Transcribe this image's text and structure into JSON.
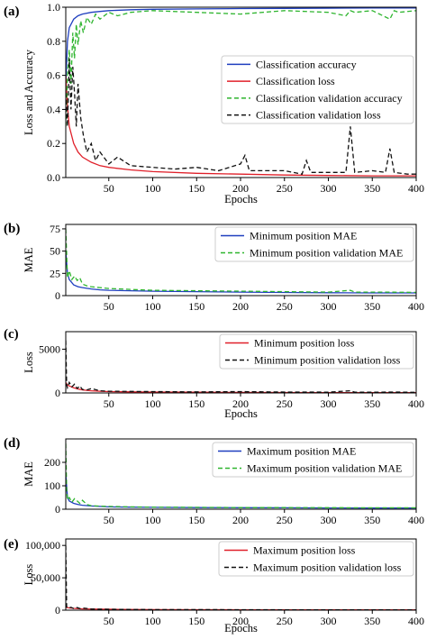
{
  "chart_data": [
    {
      "panel_label": "(a)",
      "type": "line",
      "xlabel": "Epochs",
      "ylabel": "Loss and Accuracy",
      "xlim": [
        1,
        400
      ],
      "ylim": [
        0,
        1.0
      ],
      "xticks": [
        50,
        100,
        150,
        200,
        250,
        300,
        350,
        400
      ],
      "yticks": [
        0.0,
        0.2,
        0.4,
        0.6,
        0.8,
        1.0
      ],
      "ytick_labels": [
        "0.0",
        "0.2",
        "0.4",
        "0.6",
        "0.8",
        "1.0"
      ],
      "legend_position": "center-right",
      "series": [
        {
          "name": "Classification accuracy",
          "color": "#1f3fbf",
          "dash": "solid",
          "x": [
            1,
            3,
            5,
            10,
            15,
            20,
            30,
            40,
            50,
            75,
            100,
            150,
            200,
            250,
            300,
            350,
            400
          ],
          "y": [
            0.55,
            0.8,
            0.88,
            0.93,
            0.95,
            0.96,
            0.97,
            0.975,
            0.98,
            0.985,
            0.988,
            0.99,
            0.992,
            0.993,
            0.994,
            0.995,
            0.995
          ]
        },
        {
          "name": "Classification loss",
          "color": "#e0202a",
          "dash": "solid",
          "x": [
            1,
            3,
            5,
            10,
            15,
            20,
            30,
            40,
            50,
            75,
            100,
            150,
            200,
            250,
            300,
            350,
            400
          ],
          "y": [
            0.6,
            0.42,
            0.3,
            0.2,
            0.15,
            0.12,
            0.09,
            0.07,
            0.06,
            0.045,
            0.035,
            0.025,
            0.02,
            0.015,
            0.012,
            0.01,
            0.01
          ]
        },
        {
          "name": "Classification validation accuracy",
          "color": "#2fb52f",
          "dash": "dashed",
          "x": [
            1,
            3,
            5,
            7,
            9,
            11,
            13,
            15,
            18,
            21,
            25,
            30,
            35,
            40,
            50,
            60,
            75,
            100,
            150,
            200,
            250,
            300,
            320,
            325,
            330,
            350,
            370,
            375,
            380,
            400
          ],
          "y": [
            0.3,
            0.6,
            0.75,
            0.55,
            0.85,
            0.7,
            0.9,
            0.78,
            0.92,
            0.85,
            0.94,
            0.9,
            0.96,
            0.93,
            0.97,
            0.95,
            0.97,
            0.98,
            0.97,
            0.96,
            0.98,
            0.97,
            0.95,
            0.98,
            0.97,
            0.98,
            0.93,
            0.98,
            0.97,
            0.98
          ]
        },
        {
          "name": "Classification validation loss",
          "color": "#111111",
          "dash": "dashed",
          "x": [
            1,
            3,
            5,
            7,
            9,
            11,
            13,
            15,
            18,
            21,
            25,
            30,
            35,
            40,
            50,
            60,
            75,
            100,
            125,
            150,
            175,
            200,
            205,
            210,
            250,
            270,
            275,
            280,
            300,
            320,
            325,
            330,
            350,
            365,
            370,
            375,
            390,
            400
          ],
          "y": [
            0.5,
            0.3,
            0.7,
            0.4,
            0.65,
            0.5,
            0.3,
            0.55,
            0.35,
            0.25,
            0.15,
            0.2,
            0.1,
            0.15,
            0.08,
            0.12,
            0.07,
            0.06,
            0.05,
            0.06,
            0.04,
            0.08,
            0.13,
            0.04,
            0.04,
            0.02,
            0.1,
            0.03,
            0.03,
            0.03,
            0.3,
            0.03,
            0.04,
            0.03,
            0.17,
            0.03,
            0.02,
            0.02
          ]
        }
      ]
    },
    {
      "panel_label": "(b)",
      "type": "line",
      "xlabel": "",
      "ylabel": "MAE",
      "xlim": [
        1,
        400
      ],
      "ylim": [
        0,
        80
      ],
      "xticks": [
        50,
        100,
        150,
        200,
        250,
        300,
        350,
        400
      ],
      "yticks": [
        0,
        25,
        50,
        75
      ],
      "ytick_labels": [
        "0",
        "25",
        "50",
        "75"
      ],
      "legend_position": "top-right",
      "series": [
        {
          "name": "Minimum position MAE",
          "color": "#1f3fbf",
          "dash": "solid",
          "x": [
            1,
            3,
            5,
            10,
            15,
            20,
            30,
            40,
            50,
            75,
            100,
            150,
            200,
            250,
            300,
            350,
            400
          ],
          "y": [
            50,
            25,
            18,
            12,
            10,
            9,
            7.5,
            6.5,
            6,
            5.5,
            5,
            4.5,
            4,
            3.5,
            3.2,
            3,
            3
          ]
        },
        {
          "name": "Minimum position validation MAE",
          "color": "#2fb52f",
          "dash": "dashed",
          "x": [
            1,
            3,
            5,
            8,
            11,
            14,
            17,
            20,
            25,
            30,
            40,
            50,
            75,
            100,
            150,
            200,
            250,
            300,
            325,
            330,
            350,
            375,
            400
          ],
          "y": [
            75,
            20,
            28,
            18,
            22,
            17,
            20,
            13,
            11,
            10,
            9,
            8,
            7,
            6,
            5.5,
            5,
            4.5,
            4,
            6,
            4,
            4,
            3.8,
            3.6
          ]
        }
      ]
    },
    {
      "panel_label": "(c)",
      "type": "line",
      "xlabel": "Epochs",
      "ylabel": "Loss",
      "xlim": [
        1,
        400
      ],
      "ylim": [
        0,
        7000
      ],
      "xticks": [
        50,
        100,
        150,
        200,
        250,
        300,
        350,
        400
      ],
      "yticks": [
        0,
        5000
      ],
      "ytick_labels": [
        "0",
        "5000"
      ],
      "legend_position": "top-right",
      "series": [
        {
          "name": "Minimum position loss",
          "color": "#e0202a",
          "dash": "solid",
          "x": [
            1,
            3,
            5,
            10,
            15,
            20,
            30,
            40,
            50,
            75,
            100,
            150,
            200,
            250,
            300,
            350,
            400
          ],
          "y": [
            1200,
            900,
            800,
            600,
            450,
            350,
            250,
            200,
            150,
            120,
            100,
            80,
            60,
            50,
            40,
            35,
            30
          ]
        },
        {
          "name": "Minimum position validation loss",
          "color": "#111111",
          "dash": "dashed",
          "x": [
            1,
            2,
            3,
            5,
            8,
            11,
            14,
            17,
            20,
            25,
            30,
            40,
            50,
            75,
            100,
            150,
            200,
            250,
            300,
            325,
            330,
            350,
            375,
            400
          ],
          "y": [
            6000,
            900,
            600,
            1200,
            700,
            1000,
            500,
            800,
            400,
            350,
            500,
            250,
            200,
            180,
            150,
            120,
            150,
            100,
            90,
            250,
            90,
            80,
            100,
            70
          ]
        }
      ]
    },
    {
      "panel_label": "(d)",
      "type": "line",
      "xlabel": "",
      "ylabel": "MAE",
      "xlim": [
        1,
        400
      ],
      "ylim": [
        0,
        300
      ],
      "xticks": [
        50,
        100,
        150,
        200,
        250,
        300,
        350,
        400
      ],
      "yticks": [
        0,
        100,
        200
      ],
      "ytick_labels": [
        "0",
        "100",
        "200"
      ],
      "legend_position": "top-right",
      "series": [
        {
          "name": "Maximum position MAE",
          "color": "#1f3fbf",
          "dash": "solid",
          "x": [
            1,
            3,
            5,
            10,
            15,
            20,
            30,
            40,
            50,
            75,
            100,
            150,
            200,
            250,
            300,
            350,
            400
          ],
          "y": [
            150,
            50,
            35,
            25,
            20,
            17,
            14,
            12,
            10,
            9,
            8,
            7,
            6.5,
            6,
            5.5,
            5,
            5
          ]
        },
        {
          "name": "Maximum position validation MAE",
          "color": "#2fb52f",
          "dash": "dashed",
          "x": [
            1,
            2,
            3,
            5,
            8,
            11,
            14,
            17,
            20,
            25,
            30,
            40,
            50,
            75,
            100,
            150,
            200,
            250,
            300,
            350,
            400
          ],
          "y": [
            280,
            80,
            40,
            50,
            30,
            45,
            35,
            25,
            38,
            20,
            15,
            13,
            12,
            10,
            9,
            8,
            7,
            7,
            6.5,
            6,
            6
          ]
        }
      ]
    },
    {
      "panel_label": "(e)",
      "type": "line",
      "xlabel": "Epochs",
      "ylabel": "Loss",
      "xlim": [
        1,
        400
      ],
      "ylim": [
        0,
        110000
      ],
      "xticks": [
        50,
        100,
        150,
        200,
        250,
        300,
        350,
        400
      ],
      "yticks": [
        0,
        50000,
        100000
      ],
      "ytick_labels": [
        "0",
        "50,000",
        "100,000"
      ],
      "legend_position": "top-right",
      "series": [
        {
          "name": "Maximum position loss",
          "color": "#e0202a",
          "dash": "solid",
          "x": [
            1,
            5,
            10,
            20,
            40,
            60,
            100,
            150,
            200,
            250,
            300,
            350,
            400
          ],
          "y": [
            4500,
            3500,
            2800,
            2000,
            1500,
            1200,
            900,
            700,
            600,
            500,
            450,
            400,
            380
          ]
        },
        {
          "name": "Maximum position validation loss",
          "color": "#111111",
          "dash": "dashed",
          "x": [
            1,
            2,
            4,
            7,
            10,
            14,
            18,
            22,
            30,
            40,
            60,
            100,
            150,
            200,
            250,
            300,
            350,
            400
          ],
          "y": [
            100000,
            5000,
            3000,
            4500,
            2500,
            4000,
            2000,
            3000,
            1800,
            1500,
            1200,
            900,
            800,
            700,
            600,
            500,
            450,
            420
          ]
        }
      ]
    }
  ]
}
